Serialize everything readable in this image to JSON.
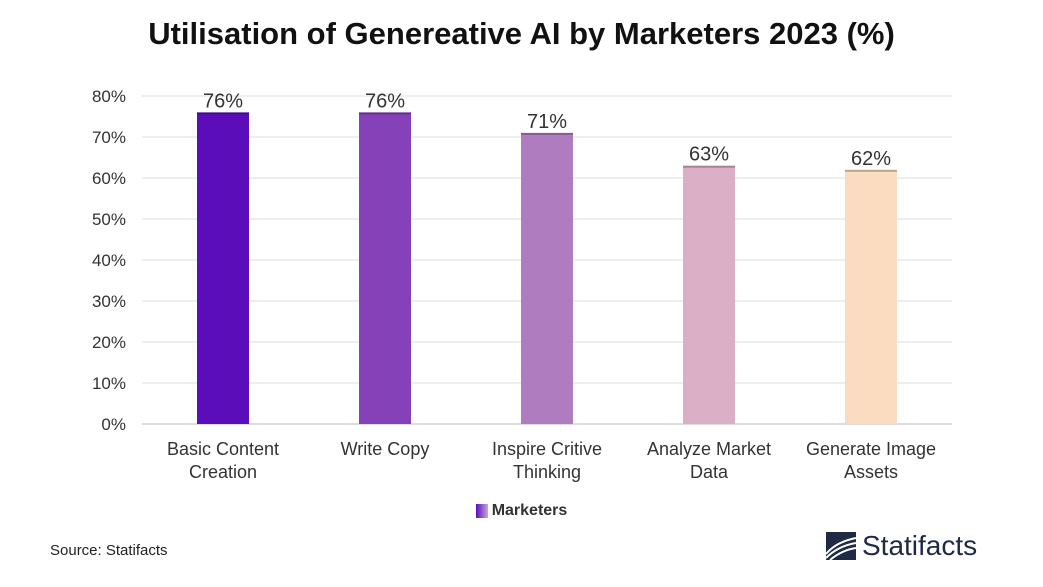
{
  "chart_data": {
    "type": "bar",
    "title": "Utilisation of Genereative AI by Marketers 2023 (%)",
    "categories": [
      [
        "Basic Content",
        "Creation"
      ],
      [
        "Write Copy"
      ],
      [
        "Inspire Critive",
        "Thinking"
      ],
      [
        "Analyze Market",
        "Data"
      ],
      [
        "Generate Image",
        "Assets"
      ]
    ],
    "series": [
      {
        "name": "Marketers",
        "values": [
          76,
          76,
          71,
          63,
          62
        ],
        "data_labels": [
          "76%",
          "76%",
          "71%",
          "63%",
          "62%"
        ],
        "colors": [
          "#5a0db8",
          "#8542b8",
          "#b07cc0",
          "#dbb0c6",
          "#fcdcc0"
        ]
      }
    ],
    "ylim": [
      0,
      80
    ],
    "yticks": [
      0,
      10,
      20,
      30,
      40,
      50,
      60,
      70,
      80
    ],
    "ytick_labels": [
      "0%",
      "10%",
      "20%",
      "30%",
      "40%",
      "50%",
      "60%",
      "70%",
      "80%"
    ],
    "grid": true,
    "legend_position": "bottom"
  },
  "footer": {
    "source": "Source: Statifacts",
    "brand": "Statifacts"
  }
}
